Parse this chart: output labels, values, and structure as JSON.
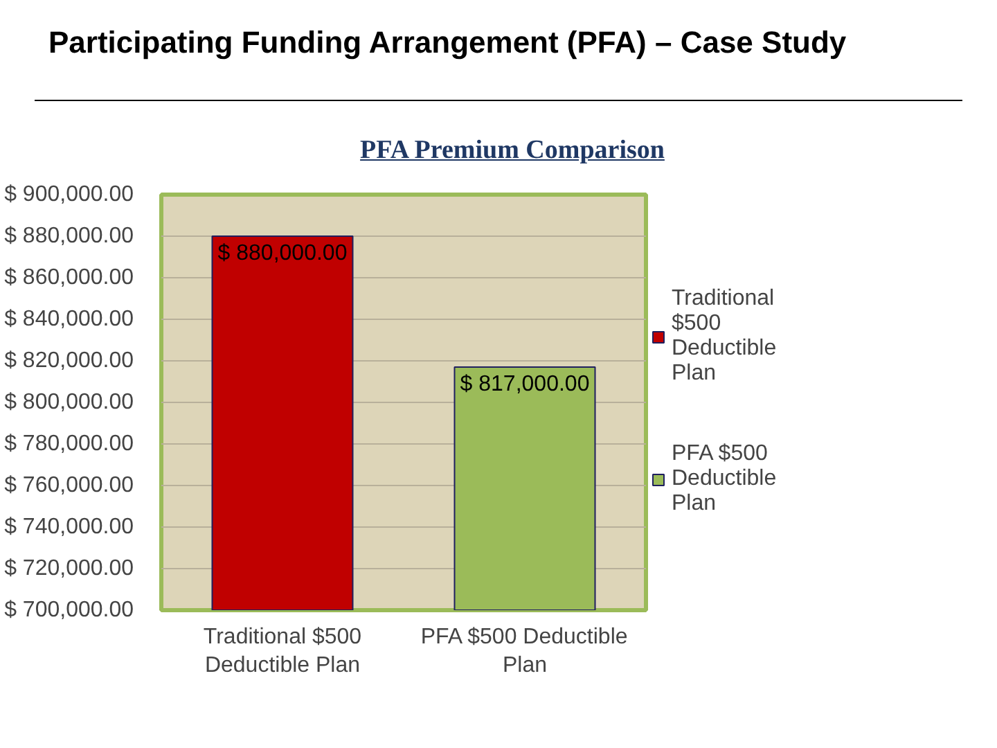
{
  "chart_data": {
    "type": "bar",
    "title": "Participating Funding Arrangement (PFA) – Case Study",
    "subtitle": "PFA Premium Comparison",
    "categories": [
      "Traditional $500 Deductible Plan",
      "PFA $500 Deductible Plan"
    ],
    "series": [
      {
        "name": "Traditional $500 Deductible Plan",
        "color": "#c00000",
        "values": [
          880000,
          null
        ],
        "value_labels": [
          "$ 880,000.00",
          null
        ]
      },
      {
        "name": "PFA $500 Deductible Plan",
        "color": "#9bbb59",
        "values": [
          null,
          817000
        ],
        "value_labels": [
          null,
          "$ 817,000.00"
        ]
      }
    ],
    "ylim": [
      700000,
      900000
    ],
    "yticks": [
      {
        "value": 700000,
        "label": "$ 700,000.00"
      },
      {
        "value": 720000,
        "label": "$ 720,000.00"
      },
      {
        "value": 740000,
        "label": "$ 740,000.00"
      },
      {
        "value": 760000,
        "label": "$ 760,000.00"
      },
      {
        "value": 780000,
        "label": "$ 780,000.00"
      },
      {
        "value": 800000,
        "label": "$ 800,000.00"
      },
      {
        "value": 820000,
        "label": "$ 820,000.00"
      },
      {
        "value": 840000,
        "label": "$ 840,000.00"
      },
      {
        "value": 860000,
        "label": "$ 860,000.00"
      },
      {
        "value": 880000,
        "label": "$ 880,000.00"
      },
      {
        "value": 900000,
        "label": "$ 900,000.00"
      }
    ],
    "grid": "y",
    "legend": "right"
  }
}
